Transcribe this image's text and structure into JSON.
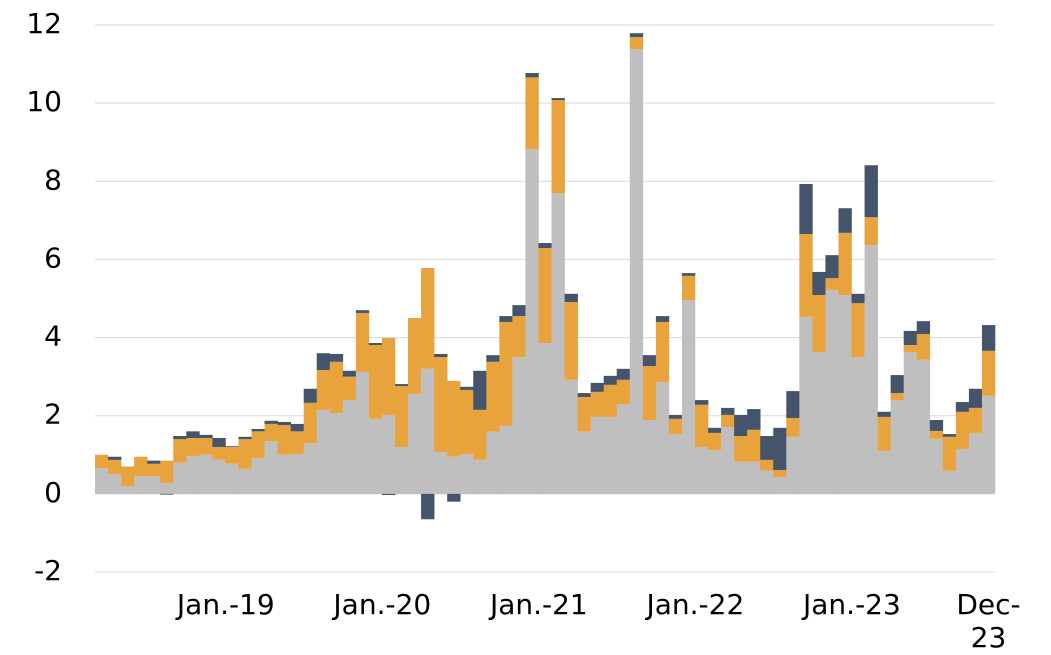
{
  "chart_data": {
    "type": "stacked-bar",
    "categories": [
      null,
      null,
      null,
      null,
      null,
      null,
      null,
      null,
      null,
      "Jan.-19",
      null,
      null,
      null,
      null,
      null,
      null,
      null,
      null,
      null,
      null,
      null,
      "Jan.-20",
      null,
      null,
      null,
      null,
      null,
      null,
      null,
      null,
      null,
      null,
      null,
      "Jan.-21",
      null,
      null,
      null,
      null,
      null,
      null,
      null,
      null,
      null,
      null,
      null,
      "Jan.-22",
      null,
      null,
      null,
      null,
      null,
      null,
      null,
      null,
      null,
      null,
      null,
      "Jan.-23",
      null,
      null,
      null,
      null,
      null,
      null,
      null,
      null,
      null,
      null,
      "Dec-23"
    ],
    "series": [
      {
        "color": "#bfbfbf",
        "values": [
          0.66,
          0.5,
          0.2,
          0.45,
          0.45,
          0.28,
          0.8,
          0.97,
          1.0,
          0.87,
          0.77,
          0.64,
          0.92,
          1.35,
          1.0,
          1.02,
          1.3,
          2.15,
          2.07,
          2.4,
          3.12,
          1.92,
          2.02,
          1.2,
          2.56,
          3.2,
          1.07,
          0.95,
          1.02,
          0.87,
          1.59,
          1.74,
          3.5,
          8.82,
          3.86,
          7.7,
          2.92,
          1.59,
          1.97,
          1.97,
          2.3,
          11.38,
          1.89,
          2.86,
          1.53,
          4.96,
          1.2,
          1.12,
          1.71,
          0.82,
          0.82,
          0.59,
          0.43,
          1.46,
          4.53,
          3.63,
          5.22,
          5.09,
          3.5,
          6.37,
          1.1,
          2.4,
          3.63,
          3.43,
          1.41,
          0.59,
          1.15,
          1.56,
          2.51
        ]
      },
      {
        "color": "#e8a33d",
        "values": [
          0.34,
          0.37,
          0.5,
          0.5,
          0.32,
          0.57,
          0.6,
          0.46,
          0.43,
          0.33,
          0.43,
          0.76,
          0.68,
          0.44,
          0.76,
          0.58,
          1.03,
          1.02,
          1.31,
          0.6,
          1.51,
          1.89,
          1.97,
          1.56,
          1.94,
          2.58,
          2.43,
          1.94,
          1.64,
          1.28,
          1.79,
          2.66,
          1.05,
          1.84,
          2.43,
          2.38,
          1.99,
          0.89,
          0.64,
          0.82,
          0.62,
          0.31,
          1.38,
          1.54,
          0.39,
          0.62,
          1.08,
          0.44,
          0.31,
          0.66,
          0.82,
          0.28,
          0.18,
          0.48,
          2.12,
          1.46,
          0.3,
          1.59,
          1.38,
          0.71,
          0.87,
          0.18,
          0.18,
          0.66,
          0.2,
          0.87,
          0.95,
          0.64,
          1.15
        ]
      },
      {
        "color": "#44546a",
        "values": [
          0,
          0.08,
          0,
          0,
          0.08,
          -0.02,
          0.08,
          0.17,
          0.08,
          0.23,
          0.02,
          0.06,
          0.06,
          0.08,
          0.08,
          0.19,
          0.36,
          0.43,
          0.2,
          0.15,
          0.07,
          0.05,
          -0.03,
          0.05,
          0,
          -0.65,
          0.08,
          -0.2,
          0.08,
          1.0,
          0.17,
          0.15,
          0.28,
          0.11,
          0.13,
          0.05,
          0.21,
          0.1,
          0.23,
          0.23,
          0.28,
          0.1,
          0.28,
          0.15,
          0.1,
          0.07,
          0.12,
          0.13,
          0.18,
          0.54,
          0.53,
          0.61,
          1.08,
          0.69,
          1.28,
          0.59,
          0.59,
          0.63,
          0.24,
          1.33,
          0.13,
          0.46,
          0.36,
          0.33,
          0.28,
          0.07,
          0.25,
          0.49,
          0.66
        ]
      }
    ],
    "ylim": [
      -2,
      12
    ],
    "yticks": [
      -2,
      0,
      2,
      4,
      6,
      8,
      10,
      12
    ],
    "grid": true
  }
}
